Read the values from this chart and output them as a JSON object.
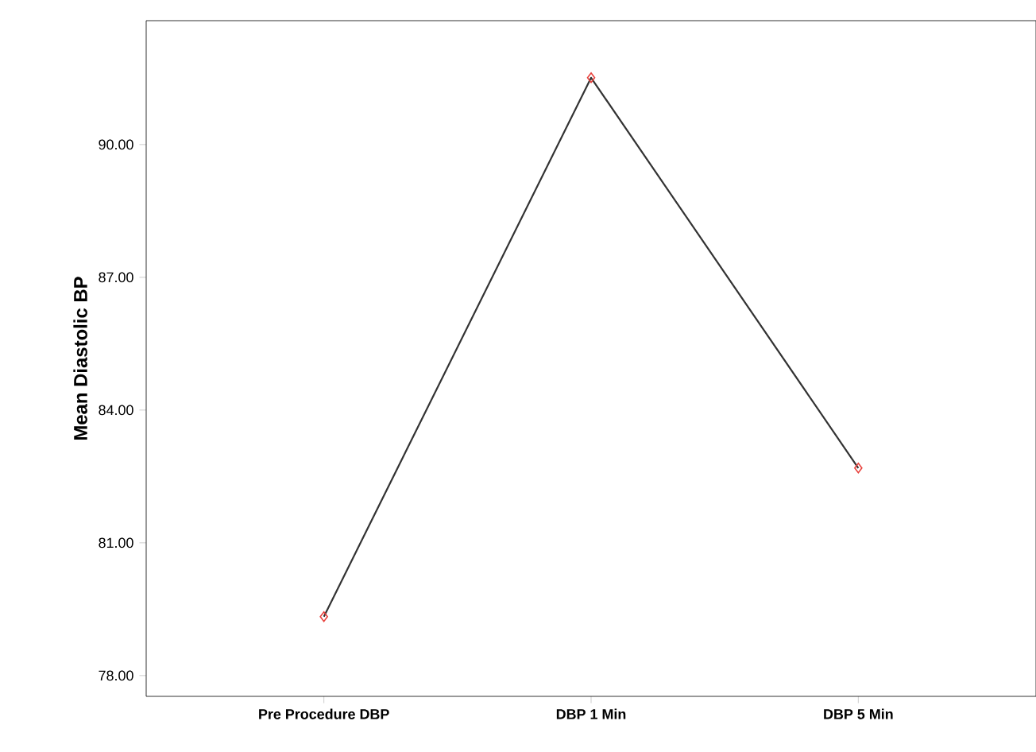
{
  "chart_data": {
    "type": "line",
    "ylabel": "Mean Diastolic BP",
    "categories": [
      "Pre Procedure DBP",
      "DBP 1 Min",
      "DBP 5 Min"
    ],
    "series": [
      {
        "color": "#333333",
        "colors": [
          "#e8413c",
          "#e8413c",
          "#e8413c"
        ],
        "values": [
          79.33,
          91.51,
          82.69
        ]
      }
    ],
    "ylim": [
      77.53,
      92.8
    ],
    "yticks": [
      {
        "value": 78,
        "label": "78.00"
      },
      {
        "value": 81,
        "label": "81.00"
      },
      {
        "value": 84,
        "label": "84.00"
      },
      {
        "value": 87,
        "label": "87.00"
      },
      {
        "value": 90,
        "label": "90.00"
      }
    ],
    "marker": "diamond",
    "line_style": "solid",
    "grid": false
  }
}
